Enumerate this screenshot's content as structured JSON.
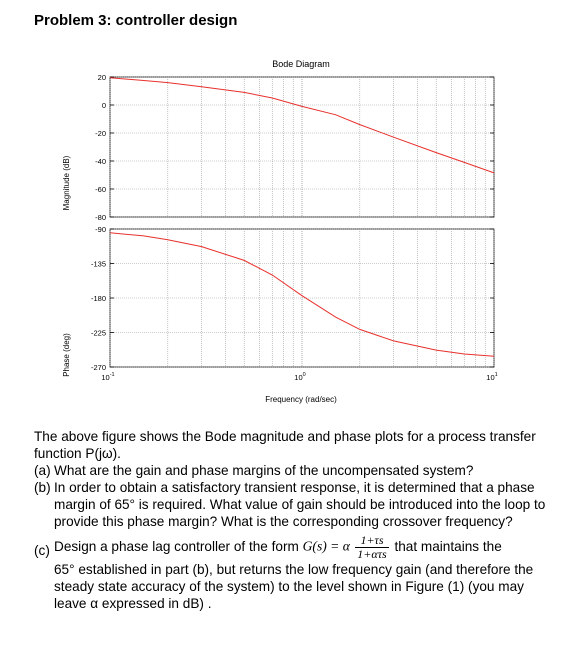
{
  "document": {
    "heading": "Problem 3: controller design",
    "intro": "The above figure shows the Bode magnitude and phase plots for a process transfer function P(jω).",
    "part_a_label": "(a)",
    "part_a": "What are the gain and phase margins of the uncompensated system?",
    "part_b_label": "(b)",
    "part_b": "In order to obtain a satisfactory transient response, it is determined that a phase margin of 65° is required. What value of gain should be introduced into the loop to provide this phase margin? What is the corresponding crossover frequency?",
    "part_c_label": "(c)",
    "part_c_pre": "Design a phase lag controller of the form",
    "formula_lhs": "G(s) = α",
    "formula_num": "1+τs",
    "formula_den": "1+ατs",
    "part_c_mid": "that maintains the",
    "part_c_post": "65° established in part (b), but returns the low frequency gain (and therefore the steady state accuracy of the system) to the level shown in Figure (1) (you may leave α expressed in dB) ."
  },
  "chart_data": [
    {
      "type": "line",
      "title": "Bode Diagram",
      "xlabel": "",
      "ylabel": "Magnitude (dB)",
      "xscale": "log",
      "xlim": [
        0.1,
        10
      ],
      "ylim": [
        -80,
        20
      ],
      "yticks": [
        "20",
        "0",
        "-20",
        "-40",
        "-60",
        "-80"
      ],
      "grid": true,
      "series": [
        {
          "color": "#e8302c",
          "x": [
            0.1,
            0.15,
            0.2,
            0.3,
            0.5,
            0.7,
            1.0,
            1.5,
            2.0,
            3.0,
            5.0,
            7.0,
            10.0
          ],
          "y": [
            19.5,
            17.5,
            16.0,
            13.0,
            9.0,
            5.0,
            -1.0,
            -7.0,
            -14.0,
            -23.0,
            -34.0,
            -41.0,
            -48.5
          ]
        }
      ]
    },
    {
      "type": "line",
      "xlabel": "Frequency (rad/sec)",
      "ylabel": "Phase (deg)",
      "xscale": "log",
      "xlim": [
        0.1,
        10
      ],
      "ylim": [
        -270,
        -90
      ],
      "yticks": [
        "-90",
        "-135",
        "-180",
        "-225",
        "-270"
      ],
      "xticks": [
        "10^-1",
        "10^0",
        "10^1"
      ],
      "grid": true,
      "series": [
        {
          "color": "#e8302c",
          "x": [
            0.1,
            0.15,
            0.2,
            0.3,
            0.5,
            0.7,
            1.0,
            1.5,
            2.0,
            3.0,
            5.0,
            7.0,
            10.0
          ],
          "y": [
            -95,
            -99,
            -104,
            -113,
            -131,
            -150,
            -177,
            -205,
            -221,
            -236,
            -248,
            -253,
            -256
          ]
        }
      ]
    }
  ]
}
